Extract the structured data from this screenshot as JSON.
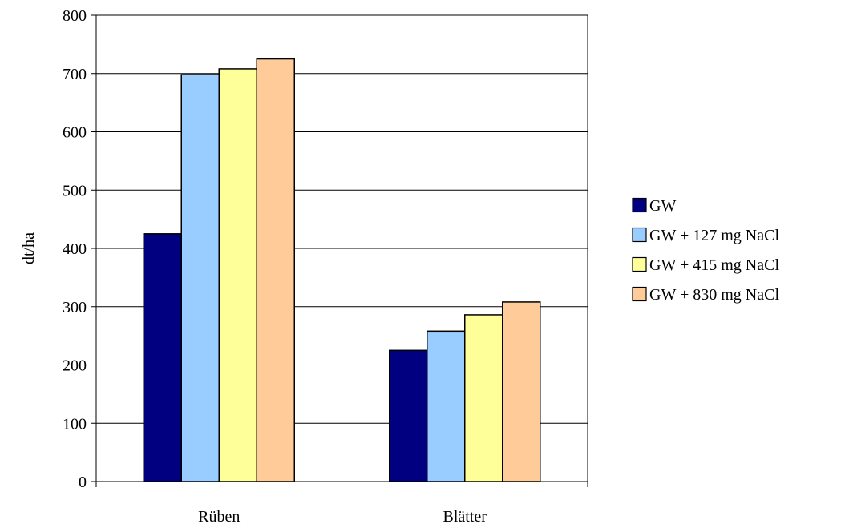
{
  "chart_data": {
    "type": "bar",
    "title": "",
    "xlabel": "",
    "ylabel": "dt/ha",
    "ylim": [
      0,
      800
    ],
    "yticks": [
      0,
      100,
      200,
      300,
      400,
      500,
      600,
      700,
      800
    ],
    "grid": true,
    "legend_position": "right",
    "categories": [
      "Rüben",
      "Blätter"
    ],
    "series": [
      {
        "name": "GW",
        "values": [
          425,
          225
        ],
        "color": "#000080"
      },
      {
        "name": "GW + 127 mg NaCl",
        "values": [
          698,
          258
        ],
        "color": "#99ccff"
      },
      {
        "name": "GW + 415 mg NaCl",
        "values": [
          708,
          286
        ],
        "color": "#ffff99"
      },
      {
        "name": "GW + 830 mg NaCl",
        "values": [
          725,
          308
        ],
        "color": "#ffcc99"
      }
    ]
  }
}
